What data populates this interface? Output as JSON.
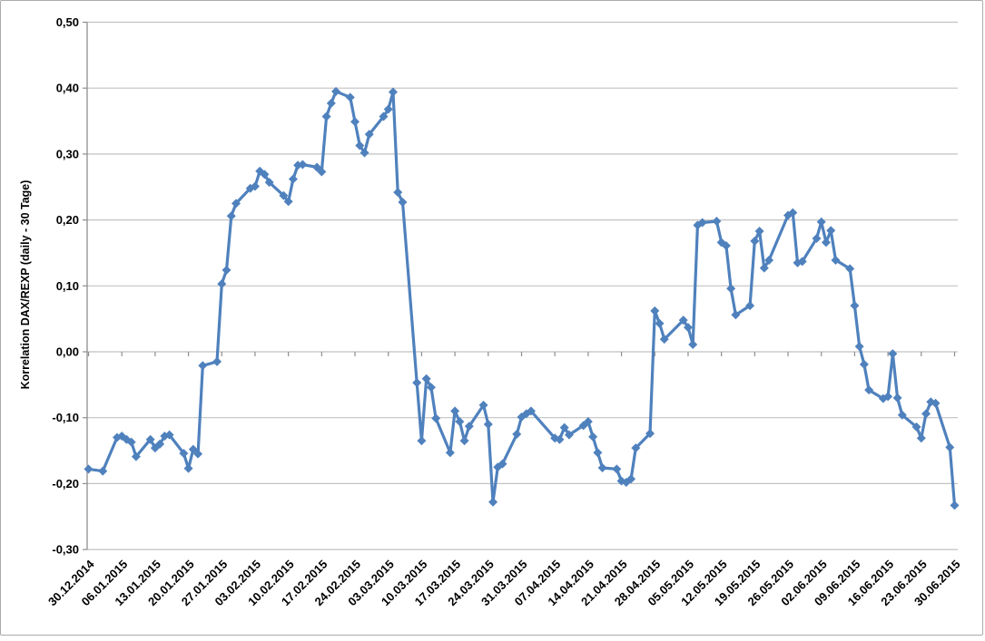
{
  "figure": {
    "background": "#ffffff",
    "border_color": "#ababab",
    "gridline_color": "#c2c2c2",
    "axis_color": "#8e8e8e"
  },
  "chart_data": {
    "type": "line",
    "title": "",
    "xlabel": "",
    "ylabel": "Korrelation DAX/REXP (daily - 30 Tage)",
    "ylim": [
      -0.3,
      0.5
    ],
    "ytick_step": 0.1,
    "grid": "horizontal",
    "legend": "none",
    "marker": "diamond",
    "line_color": "#4f81bd",
    "ytick_labels": [
      "0,50",
      "0,40",
      "0,30",
      "0,20",
      "0,10",
      "0,00",
      "-0,10",
      "-0,20",
      "-0,30"
    ],
    "xtick_labels": [
      "30.12.2014",
      "06.01.2015",
      "13.01.2015",
      "20.01.2015",
      "27.01.2015",
      "03.02.2015",
      "10.02.2015",
      "17.02.2015",
      "24.02.2015",
      "03.03.2015",
      "10.03.2015",
      "17.03.2015",
      "24.03.2015",
      "31.03.2015",
      "07.04.2015",
      "14.04.2015",
      "21.04.2015",
      "28.04.2015",
      "05.05.2015",
      "12.05.2015",
      "19.05.2015",
      "26.05.2015",
      "02.06.2015",
      "09.06.2015",
      "16.06.2015",
      "23.06.2015",
      "30.06.2015"
    ],
    "series": [
      {
        "name": "Korrelation DAX/REXP (daily - 30 Tage)",
        "color": "#4f81bd",
        "points": [
          {
            "date": "30.12.2014",
            "value": -0.178
          },
          {
            "date": "02.01.2015",
            "value": -0.181
          },
          {
            "date": "05.01.2015",
            "value": -0.13
          },
          {
            "date": "06.01.2015",
            "value": -0.128
          },
          {
            "date": "07.01.2015",
            "value": -0.133
          },
          {
            "date": "08.01.2015",
            "value": -0.137
          },
          {
            "date": "09.01.2015",
            "value": -0.159
          },
          {
            "date": "12.01.2015",
            "value": -0.133
          },
          {
            "date": "13.01.2015",
            "value": -0.146
          },
          {
            "date": "14.01.2015",
            "value": -0.14
          },
          {
            "date": "15.01.2015",
            "value": -0.128
          },
          {
            "date": "16.01.2015",
            "value": -0.126
          },
          {
            "date": "19.01.2015",
            "value": -0.154
          },
          {
            "date": "20.01.2015",
            "value": -0.177
          },
          {
            "date": "21.01.2015",
            "value": -0.148
          },
          {
            "date": "22.01.2015",
            "value": -0.155
          },
          {
            "date": "23.01.2015",
            "value": -0.021
          },
          {
            "date": "26.01.2015",
            "value": -0.015
          },
          {
            "date": "27.01.2015",
            "value": 0.103
          },
          {
            "date": "28.01.2015",
            "value": 0.124
          },
          {
            "date": "29.01.2015",
            "value": 0.206
          },
          {
            "date": "30.01.2015",
            "value": 0.225
          },
          {
            "date": "02.02.2015",
            "value": 0.248
          },
          {
            "date": "03.02.2015",
            "value": 0.251
          },
          {
            "date": "04.02.2015",
            "value": 0.274
          },
          {
            "date": "05.02.2015",
            "value": 0.269
          },
          {
            "date": "06.02.2015",
            "value": 0.257
          },
          {
            "date": "09.02.2015",
            "value": 0.237
          },
          {
            "date": "10.02.2015",
            "value": 0.228
          },
          {
            "date": "11.02.2015",
            "value": 0.262
          },
          {
            "date": "12.02.2015",
            "value": 0.283
          },
          {
            "date": "13.02.2015",
            "value": 0.284
          },
          {
            "date": "16.02.2015",
            "value": 0.28
          },
          {
            "date": "17.02.2015",
            "value": 0.273
          },
          {
            "date": "18.02.2015",
            "value": 0.357
          },
          {
            "date": "19.02.2015",
            "value": 0.377
          },
          {
            "date": "20.02.2015",
            "value": 0.395
          },
          {
            "date": "23.02.2015",
            "value": 0.386
          },
          {
            "date": "24.02.2015",
            "value": 0.349
          },
          {
            "date": "25.02.2015",
            "value": 0.313
          },
          {
            "date": "26.02.2015",
            "value": 0.302
          },
          {
            "date": "27.02.2015",
            "value": 0.33
          },
          {
            "date": "02.03.2015",
            "value": 0.357
          },
          {
            "date": "03.03.2015",
            "value": 0.368
          },
          {
            "date": "04.03.2015",
            "value": 0.394
          },
          {
            "date": "05.03.2015",
            "value": 0.242
          },
          {
            "date": "06.03.2015",
            "value": 0.227
          },
          {
            "date": "09.03.2015",
            "value": -0.047
          },
          {
            "date": "10.03.2015",
            "value": -0.135
          },
          {
            "date": "11.03.2015",
            "value": -0.041
          },
          {
            "date": "12.03.2015",
            "value": -0.054
          },
          {
            "date": "13.03.2015",
            "value": -0.101
          },
          {
            "date": "16.03.2015",
            "value": -0.153
          },
          {
            "date": "17.03.2015",
            "value": -0.09
          },
          {
            "date": "18.03.2015",
            "value": -0.106
          },
          {
            "date": "19.03.2015",
            "value": -0.135
          },
          {
            "date": "20.03.2015",
            "value": -0.113
          },
          {
            "date": "23.03.2015",
            "value": -0.081
          },
          {
            "date": "24.03.2015",
            "value": -0.11
          },
          {
            "date": "25.03.2015",
            "value": -0.228
          },
          {
            "date": "26.03.2015",
            "value": -0.175
          },
          {
            "date": "27.03.2015",
            "value": -0.17
          },
          {
            "date": "30.03.2015",
            "value": -0.125
          },
          {
            "date": "31.03.2015",
            "value": -0.099
          },
          {
            "date": "01.04.2015",
            "value": -0.094
          },
          {
            "date": "02.04.2015",
            "value": -0.09
          },
          {
            "date": "07.04.2015",
            "value": -0.131
          },
          {
            "date": "08.04.2015",
            "value": -0.133
          },
          {
            "date": "09.04.2015",
            "value": -0.115
          },
          {
            "date": "10.04.2015",
            "value": -0.126
          },
          {
            "date": "13.04.2015",
            "value": -0.112
          },
          {
            "date": "14.04.2015",
            "value": -0.106
          },
          {
            "date": "15.04.2015",
            "value": -0.129
          },
          {
            "date": "16.04.2015",
            "value": -0.153
          },
          {
            "date": "17.04.2015",
            "value": -0.176
          },
          {
            "date": "20.04.2015",
            "value": -0.178
          },
          {
            "date": "21.04.2015",
            "value": -0.196
          },
          {
            "date": "22.04.2015",
            "value": -0.198
          },
          {
            "date": "23.04.2015",
            "value": -0.193
          },
          {
            "date": "24.04.2015",
            "value": -0.146
          },
          {
            "date": "27.04.2015",
            "value": -0.124
          },
          {
            "date": "28.04.2015",
            "value": 0.062
          },
          {
            "date": "29.04.2015",
            "value": 0.043
          },
          {
            "date": "30.04.2015",
            "value": 0.019
          },
          {
            "date": "04.05.2015",
            "value": 0.048
          },
          {
            "date": "05.05.2015",
            "value": 0.037
          },
          {
            "date": "06.05.2015",
            "value": 0.011
          },
          {
            "date": "07.05.2015",
            "value": 0.192
          },
          {
            "date": "08.05.2015",
            "value": 0.196
          },
          {
            "date": "11.05.2015",
            "value": 0.198
          },
          {
            "date": "12.05.2015",
            "value": 0.166
          },
          {
            "date": "13.05.2015",
            "value": 0.161
          },
          {
            "date": "14.05.2015",
            "value": 0.096
          },
          {
            "date": "15.05.2015",
            "value": 0.056
          },
          {
            "date": "18.05.2015",
            "value": 0.07
          },
          {
            "date": "19.05.2015",
            "value": 0.168
          },
          {
            "date": "20.05.2015",
            "value": 0.183
          },
          {
            "date": "21.05.2015",
            "value": 0.127
          },
          {
            "date": "22.05.2015",
            "value": 0.139
          },
          {
            "date": "26.05.2015",
            "value": 0.207
          },
          {
            "date": "27.05.2015",
            "value": 0.211
          },
          {
            "date": "28.05.2015",
            "value": 0.135
          },
          {
            "date": "29.05.2015",
            "value": 0.137
          },
          {
            "date": "01.06.2015",
            "value": 0.172
          },
          {
            "date": "02.06.2015",
            "value": 0.197
          },
          {
            "date": "03.06.2015",
            "value": 0.166
          },
          {
            "date": "04.06.2015",
            "value": 0.184
          },
          {
            "date": "05.06.2015",
            "value": 0.139
          },
          {
            "date": "08.06.2015",
            "value": 0.126
          },
          {
            "date": "09.06.2015",
            "value": 0.07
          },
          {
            "date": "10.06.2015",
            "value": 0.008
          },
          {
            "date": "11.06.2015",
            "value": -0.019
          },
          {
            "date": "12.06.2015",
            "value": -0.058
          },
          {
            "date": "15.06.2015",
            "value": -0.071
          },
          {
            "date": "16.06.2015",
            "value": -0.068
          },
          {
            "date": "17.06.2015",
            "value": -0.003
          },
          {
            "date": "18.06.2015",
            "value": -0.07
          },
          {
            "date": "19.06.2015",
            "value": -0.096
          },
          {
            "date": "22.06.2015",
            "value": -0.114
          },
          {
            "date": "23.06.2015",
            "value": -0.131
          },
          {
            "date": "24.06.2015",
            "value": -0.094
          },
          {
            "date": "25.06.2015",
            "value": -0.076
          },
          {
            "date": "26.06.2015",
            "value": -0.078
          },
          {
            "date": "29.06.2015",
            "value": -0.145
          },
          {
            "date": "30.06.2015",
            "value": -0.233
          }
        ]
      }
    ]
  }
}
